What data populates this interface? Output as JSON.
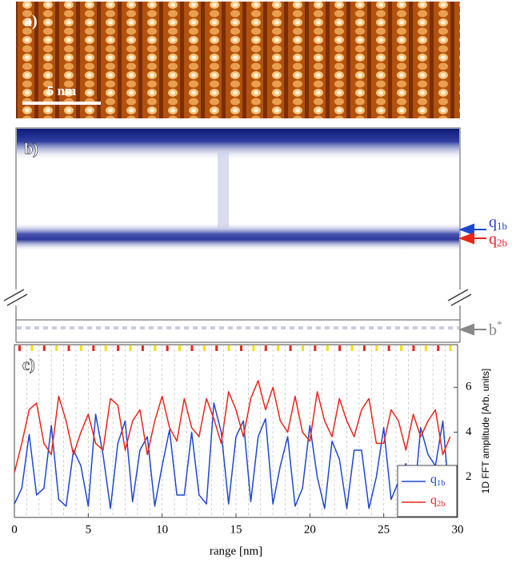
{
  "panel_a": {
    "label": "a)",
    "scale_bar": "5 nm"
  },
  "panel_b": {
    "label": "b)",
    "annotations": [
      "q1b",
      "q2b",
      "b*"
    ]
  },
  "chart_data": {
    "type": "line",
    "panel_label": "c)",
    "xlabel": "range [nm]",
    "ylabel": "1D FFT amplitude [Arb. units]",
    "x": [
      0,
      0.5,
      1,
      1.5,
      2,
      2.5,
      3,
      3.5,
      4,
      4.5,
      5,
      5.5,
      6,
      6.5,
      7,
      7.5,
      8,
      8.5,
      9,
      9.5,
      10,
      10.5,
      11,
      11.5,
      12,
      12.5,
      13,
      13.5,
      14,
      14.5,
      15,
      15.5,
      16,
      16.5,
      17,
      17.5,
      18,
      18.5,
      19,
      19.5,
      20,
      20.5,
      21,
      21.5,
      22,
      22.5,
      23,
      23.5,
      24,
      24.5,
      25,
      25.5,
      26,
      26.5,
      27,
      27.5,
      28,
      28.5,
      29,
      29.5
    ],
    "series": [
      {
        "name": "q1b",
        "color": "#1f47d0",
        "values": [
          0.8,
          1.5,
          3.9,
          1.2,
          1.5,
          4.3,
          1.0,
          0.7,
          3.2,
          2.5,
          0.7,
          4.8,
          3.0,
          0.6,
          3.5,
          4.5,
          0.9,
          3.2,
          3.8,
          0.7,
          2.5,
          4.1,
          1.2,
          1.2,
          4.0,
          1.2,
          0.8,
          5.3,
          4.0,
          0.8,
          3.8,
          4.5,
          0.9,
          3.8,
          4.6,
          0.8,
          2.5,
          3.8,
          0.7,
          1.5,
          4.3,
          2.0,
          0.6,
          3.6,
          2.8,
          0.6,
          3.2,
          3.2,
          0.6,
          2.0,
          4.2,
          1.0,
          1.8,
          2.6,
          0.5,
          4.2,
          3.0,
          2.5,
          4.5,
          0.6
        ]
      },
      {
        "name": "q2b",
        "color": "#e8261c",
        "values": [
          2.2,
          3.5,
          5.0,
          5.3,
          3.5,
          3.0,
          5.6,
          4.5,
          3.0,
          4.0,
          4.8,
          3.5,
          3.2,
          5.5,
          5.2,
          3.2,
          4.5,
          5.0,
          3.0,
          4.5,
          5.6,
          4.2,
          3.6,
          5.5,
          4.2,
          3.8,
          5.5,
          4.6,
          3.5,
          5.8,
          5.0,
          3.8,
          5.5,
          6.3,
          5.0,
          6.0,
          4.5,
          4.0,
          5.6,
          4.0,
          3.6,
          5.8,
          4.5,
          3.8,
          5.5,
          4.5,
          3.8,
          5.0,
          5.5,
          3.5,
          3.5,
          5.0,
          4.5,
          3.2,
          4.8,
          3.8,
          4.5,
          5.0,
          3.0,
          3.8
        ]
      }
    ],
    "xlim": [
      0,
      30
    ],
    "xticks": [
      0,
      5,
      10,
      15,
      20,
      25,
      30
    ],
    "ylim": [
      0.2,
      7.9
    ],
    "yticks": [
      2,
      4,
      6
    ],
    "legend": "lower right"
  }
}
